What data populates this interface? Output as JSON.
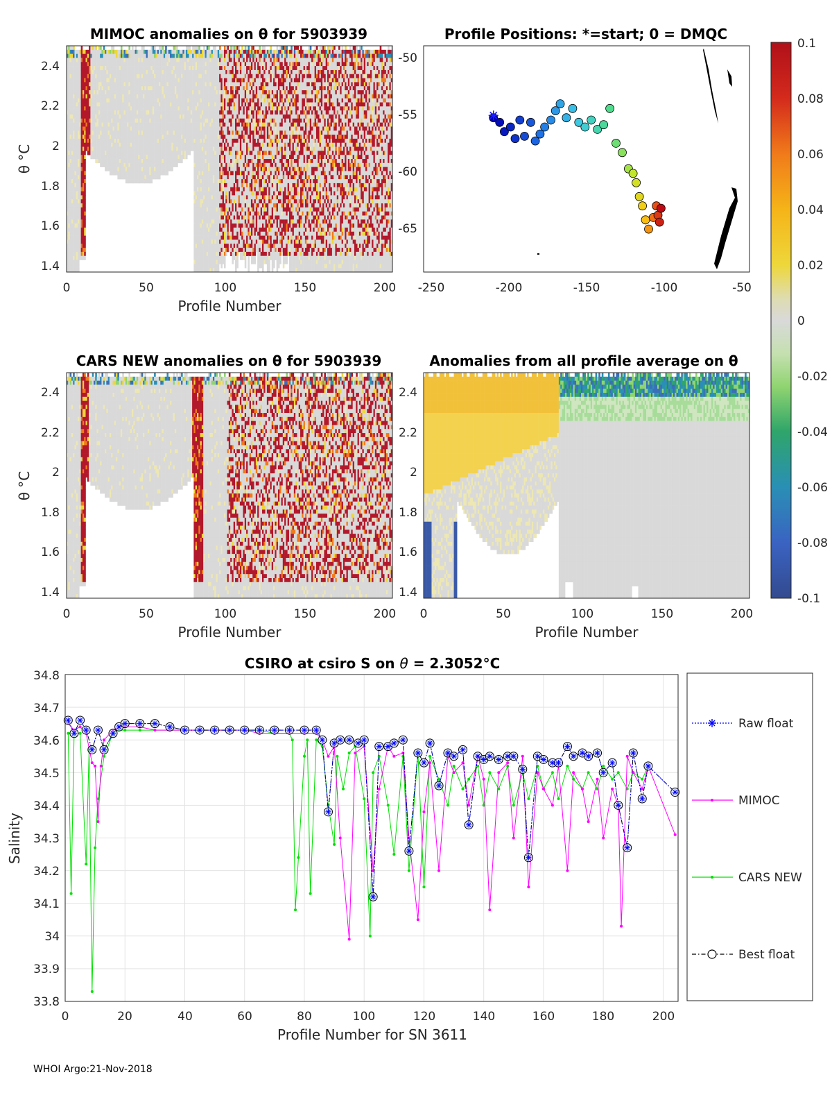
{
  "colors": {
    "raw_float": "#0000ff",
    "mimoc": "#ff00ff",
    "cars_new": "#00e000",
    "best_float": "#000000",
    "anomaly_high": "#b2182b",
    "anomaly_low": "#2c4a9a",
    "neutral": "#d9d9d9"
  },
  "chart_data": [
    {
      "type": "heatmap",
      "title": "MIMOC anomalies on θ  for 5903939",
      "xlabel": "Profile Number",
      "ylabel": "θ °C",
      "xlim": [
        0,
        205
      ],
      "ylim": [
        1.37,
        2.5
      ],
      "xticks": [
        "0",
        "50",
        "100",
        "150",
        "200"
      ],
      "yticks": [
        "1.4",
        "1.6",
        "1.8",
        "2",
        "2.2",
        "2.4"
      ],
      "ytick_values": [
        1.4,
        1.6,
        1.8,
        2,
        2.2,
        2.4
      ]
    },
    {
      "type": "scatter",
      "title": "Profile Positions: *=start; 0 = DMQC",
      "xlim": [
        -255,
        -45
      ],
      "ylim": [
        -68.5,
        -49
      ],
      "xticks": [
        "-250",
        "-200",
        "-150",
        "-100",
        "-50"
      ],
      "yticks": [
        "-50",
        "-55",
        "-60",
        "-65"
      ],
      "ytick_values": [
        -50,
        -55,
        -60,
        -65
      ],
      "start": {
        "lon": -210,
        "lat": -55
      },
      "track": [
        {
          "lon": -210,
          "lat": -55.2
        },
        {
          "lon": -206,
          "lat": -55.6
        },
        {
          "lon": -203,
          "lat": -56.4
        },
        {
          "lon": -199,
          "lat": -56.0
        },
        {
          "lon": -196,
          "lat": -57.0
        },
        {
          "lon": -193,
          "lat": -55.4
        },
        {
          "lon": -190,
          "lat": -56.8
        },
        {
          "lon": -186,
          "lat": -55.6
        },
        {
          "lon": -183,
          "lat": -57.2
        },
        {
          "lon": -180,
          "lat": -56.6
        },
        {
          "lon": -177,
          "lat": -56.0
        },
        {
          "lon": -173,
          "lat": -55.4
        },
        {
          "lon": -170,
          "lat": -54.6
        },
        {
          "lon": -167,
          "lat": -54.0
        },
        {
          "lon": -163,
          "lat": -55.2
        },
        {
          "lon": -159,
          "lat": -54.4
        },
        {
          "lon": -155,
          "lat": -55.6
        },
        {
          "lon": -151,
          "lat": -56.0
        },
        {
          "lon": -147,
          "lat": -55.4
        },
        {
          "lon": -143,
          "lat": -56.2
        },
        {
          "lon": -139,
          "lat": -55.8
        },
        {
          "lon": -135,
          "lat": -54.4
        },
        {
          "lon": -131,
          "lat": -57.4
        },
        {
          "lon": -127,
          "lat": -58.2
        },
        {
          "lon": -123,
          "lat": -59.6
        },
        {
          "lon": -120,
          "lat": -60.0
        },
        {
          "lon": -118,
          "lat": -60.8
        },
        {
          "lon": -116,
          "lat": -62.0
        },
        {
          "lon": -114,
          "lat": -62.8
        },
        {
          "lon": -112,
          "lat": -64.0
        },
        {
          "lon": -110,
          "lat": -64.8
        },
        {
          "lon": -107,
          "lat": -63.8
        },
        {
          "lon": -105,
          "lat": -62.8
        },
        {
          "lon": -104,
          "lat": -63.6
        },
        {
          "lon": -103,
          "lat": -64.2
        },
        {
          "lon": -102,
          "lat": -63.0
        }
      ]
    },
    {
      "type": "heatmap",
      "title": "CARS NEW anomalies on θ for 5903939",
      "xlabel": "Profile Number",
      "ylabel": "θ °C",
      "xlim": [
        0,
        205
      ],
      "ylim": [
        1.37,
        2.5
      ],
      "xticks": [
        "0",
        "50",
        "100",
        "150",
        "200"
      ],
      "yticks": [
        "1.4",
        "1.6",
        "1.8",
        "2",
        "2.2",
        "2.4"
      ],
      "ytick_values": [
        1.4,
        1.6,
        1.8,
        2,
        2.2,
        2.4
      ]
    },
    {
      "type": "heatmap",
      "title": "Anomalies from all profile average on θ",
      "xlabel": "Profile Number",
      "xlim": [
        0,
        205
      ],
      "ylim": [
        1.37,
        2.5
      ],
      "xticks": [
        "0",
        "50",
        "100",
        "150",
        "200"
      ],
      "yticks": [
        "1.4",
        "1.6",
        "1.8",
        "2",
        "2.2",
        "2.4"
      ],
      "ytick_values": [
        1.4,
        1.6,
        1.8,
        2,
        2.2,
        2.4
      ]
    },
    {
      "type": "colorbar",
      "range": [
        -0.1,
        0.1
      ],
      "ticks": [
        "0.1",
        "0.08",
        "0.06",
        "0.04",
        "0.02",
        "0",
        "-0.02",
        "-0.04",
        "-0.06",
        "-0.08",
        "-0.1"
      ],
      "tick_values": [
        0.1,
        0.08,
        0.06,
        0.04,
        0.02,
        0,
        -0.02,
        -0.04,
        -0.06,
        -0.08,
        -0.1
      ]
    },
    {
      "type": "line",
      "title_prefix": "CSIRO at csiro S on ",
      "title_theta": "θ",
      "title_value": " = 2.3052",
      "title_unit": "°C",
      "xlabel": "Profile Number for SN 3611",
      "ylabel": "Salinity",
      "xlim": [
        0,
        205
      ],
      "ylim": [
        33.8,
        34.8
      ],
      "grid": true,
      "legend_position": "right",
      "xticks": [
        "0",
        "20",
        "40",
        "60",
        "80",
        "100",
        "120",
        "140",
        "160",
        "180",
        "200"
      ],
      "xtick_values": [
        0,
        20,
        40,
        60,
        80,
        100,
        120,
        140,
        160,
        180,
        200
      ],
      "yticks": [
        "33.8",
        "33.9",
        "34",
        "34.1",
        "34.2",
        "34.3",
        "34.4",
        "34.5",
        "34.6",
        "34.7",
        "34.8"
      ],
      "ytick_values": [
        33.8,
        33.9,
        34.0,
        34.1,
        34.2,
        34.3,
        34.4,
        34.5,
        34.6,
        34.7,
        34.8
      ],
      "series": [
        {
          "name": "Raw float",
          "x": [
            1,
            3,
            5,
            7,
            9,
            11,
            13,
            16,
            18,
            20,
            25,
            30,
            35,
            40,
            45,
            50,
            55,
            60,
            65,
            70,
            75,
            80,
            84,
            86,
            88,
            90,
            92,
            95,
            98,
            100,
            103,
            105,
            108,
            110,
            113,
            115,
            118,
            120,
            122,
            125,
            128,
            130,
            133,
            135,
            138,
            140,
            142,
            145,
            148,
            150,
            153,
            155,
            158,
            160,
            163,
            165,
            168,
            170,
            173,
            175,
            178,
            180,
            183,
            185,
            188,
            190,
            193,
            195,
            204
          ],
          "y": [
            34.66,
            34.62,
            34.66,
            34.63,
            34.57,
            34.63,
            34.57,
            34.62,
            34.64,
            34.65,
            34.65,
            34.65,
            34.64,
            34.63,
            34.63,
            34.63,
            34.63,
            34.63,
            34.63,
            34.63,
            34.63,
            34.63,
            34.63,
            34.6,
            34.38,
            34.59,
            34.6,
            34.6,
            34.59,
            34.6,
            34.12,
            34.58,
            34.58,
            34.59,
            34.6,
            34.26,
            34.56,
            34.53,
            34.59,
            34.46,
            34.56,
            34.55,
            34.57,
            34.34,
            34.55,
            34.54,
            34.55,
            34.54,
            34.55,
            34.55,
            34.51,
            34.24,
            34.55,
            34.54,
            34.53,
            34.53,
            34.58,
            34.55,
            34.56,
            34.55,
            34.56,
            34.5,
            34.53,
            34.4,
            34.27,
            34.56,
            34.42,
            34.52,
            34.44
          ]
        },
        {
          "name": "MIMOC",
          "x": [
            1,
            3,
            5,
            7,
            9,
            10,
            11,
            12,
            13,
            16,
            18,
            20,
            25,
            30,
            35,
            40,
            45,
            50,
            55,
            60,
            65,
            70,
            75,
            80,
            84,
            86,
            88,
            90,
            92,
            95,
            97,
            100,
            103,
            105,
            108,
            110,
            113,
            115,
            118,
            120,
            122,
            125,
            128,
            130,
            133,
            135,
            138,
            140,
            142,
            145,
            148,
            150,
            153,
            155,
            158,
            160,
            163,
            165,
            168,
            170,
            173,
            175,
            178,
            180,
            183,
            185,
            186,
            188,
            190,
            193,
            195,
            204
          ],
          "y": [
            34.65,
            34.63,
            34.64,
            34.62,
            34.53,
            34.52,
            34.35,
            34.52,
            34.6,
            34.63,
            34.64,
            34.64,
            34.64,
            34.63,
            34.63,
            34.63,
            34.63,
            34.63,
            34.63,
            34.63,
            34.62,
            34.62,
            34.62,
            34.62,
            34.62,
            34.6,
            34.55,
            34.58,
            34.3,
            33.99,
            34.56,
            34.58,
            34.2,
            34.45,
            34.58,
            34.55,
            34.56,
            34.3,
            34.05,
            34.38,
            34.53,
            34.2,
            34.55,
            34.5,
            34.53,
            34.4,
            34.55,
            34.48,
            34.08,
            34.5,
            34.53,
            34.3,
            34.55,
            34.15,
            34.5,
            34.45,
            34.4,
            34.52,
            34.2,
            34.5,
            34.45,
            34.35,
            34.48,
            34.3,
            34.45,
            34.4,
            34.03,
            34.55,
            34.5,
            34.45,
            34.52,
            34.31
          ]
        },
        {
          "name": "CARS NEW",
          "x": [
            1,
            2,
            3,
            5,
            7,
            8,
            9,
            10,
            11,
            13,
            16,
            18,
            20,
            25,
            30,
            35,
            40,
            45,
            50,
            55,
            60,
            65,
            70,
            75,
            76,
            77,
            78,
            80,
            81,
            82,
            84,
            86,
            88,
            90,
            91,
            93,
            95,
            97,
            100,
            102,
            103,
            105,
            108,
            110,
            113,
            115,
            118,
            120,
            122,
            125,
            128,
            130,
            133,
            135,
            138,
            140,
            142,
            145,
            148,
            150,
            153,
            155,
            158,
            160,
            163,
            165,
            168,
            170,
            173,
            175,
            178,
            180,
            183,
            185,
            188,
            190,
            193,
            195
          ],
          "y": [
            34.62,
            34.13,
            34.62,
            34.62,
            34.22,
            34.57,
            33.83,
            34.27,
            34.42,
            34.55,
            34.62,
            34.63,
            34.63,
            34.63,
            34.63,
            34.63,
            34.63,
            34.63,
            34.63,
            34.63,
            34.63,
            34.63,
            34.62,
            34.62,
            34.6,
            34.08,
            34.24,
            34.55,
            34.6,
            34.13,
            34.6,
            34.58,
            34.4,
            34.28,
            34.55,
            34.45,
            34.56,
            34.58,
            34.42,
            34.0,
            34.5,
            34.55,
            34.4,
            34.25,
            34.55,
            34.2,
            34.56,
            34.15,
            34.55,
            34.48,
            34.4,
            34.52,
            34.45,
            34.48,
            34.52,
            34.4,
            34.5,
            34.45,
            34.52,
            34.4,
            34.5,
            34.42,
            34.52,
            34.45,
            34.5,
            34.42,
            34.52,
            34.48,
            34.45,
            34.5,
            34.45,
            34.52,
            34.48,
            34.5,
            34.45,
            34.5,
            34.48,
            34.52
          ]
        },
        {
          "name": "Best float",
          "x": [
            1,
            3,
            5,
            7,
            9,
            11,
            13,
            16,
            18,
            20,
            25,
            30,
            35,
            40,
            45,
            50,
            55,
            60,
            65,
            70,
            75,
            80,
            84,
            86,
            88,
            90,
            92,
            95,
            98,
            100,
            103,
            105,
            108,
            110,
            113,
            115,
            118,
            120,
            122,
            125,
            128,
            130,
            133,
            135,
            138,
            140,
            142,
            145,
            148,
            150,
            153,
            155,
            158,
            160,
            163,
            165,
            168,
            170,
            173,
            175,
            178,
            180,
            183,
            185,
            188,
            190,
            193,
            195,
            204
          ],
          "y": [
            34.66,
            34.62,
            34.66,
            34.63,
            34.57,
            34.63,
            34.57,
            34.62,
            34.64,
            34.65,
            34.65,
            34.65,
            34.64,
            34.63,
            34.63,
            34.63,
            34.63,
            34.63,
            34.63,
            34.63,
            34.63,
            34.63,
            34.63,
            34.6,
            34.38,
            34.59,
            34.6,
            34.6,
            34.59,
            34.6,
            34.12,
            34.58,
            34.58,
            34.59,
            34.6,
            34.26,
            34.56,
            34.53,
            34.59,
            34.46,
            34.56,
            34.55,
            34.57,
            34.34,
            34.55,
            34.54,
            34.55,
            34.54,
            34.55,
            34.55,
            34.51,
            34.24,
            34.55,
            34.54,
            34.53,
            34.53,
            34.58,
            34.55,
            34.56,
            34.55,
            34.56,
            34.5,
            34.53,
            34.4,
            34.27,
            34.56,
            34.42,
            34.52,
            34.44
          ]
        }
      ]
    }
  ],
  "footer": "WHOI Argo:21-Nov-2018"
}
